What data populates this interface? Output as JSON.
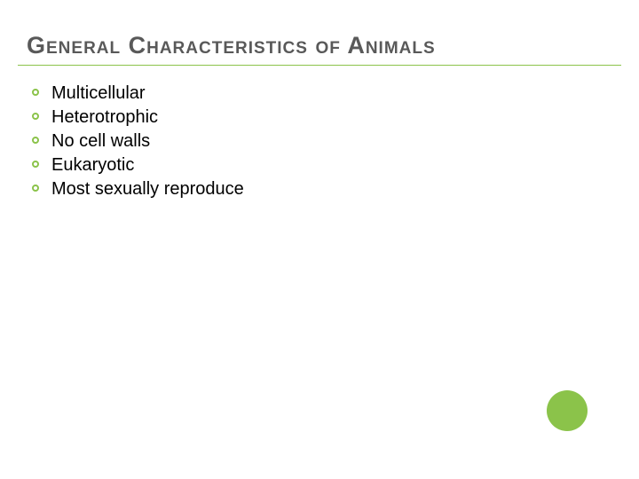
{
  "slide": {
    "title": "General Characteristics of Animals",
    "title_color": "#595959",
    "title_fontsize": 27,
    "underline_color": "#8bc34a",
    "bullets": [
      "Multicellular",
      "Heterotrophic",
      "No cell walls",
      "Eukaryotic",
      "Most sexually reproduce"
    ],
    "bullet_fontsize": 20,
    "bullet_ring_color": "#8bc34a",
    "accent_circle_color": "#8bc34a",
    "background_color": "#ffffff"
  }
}
